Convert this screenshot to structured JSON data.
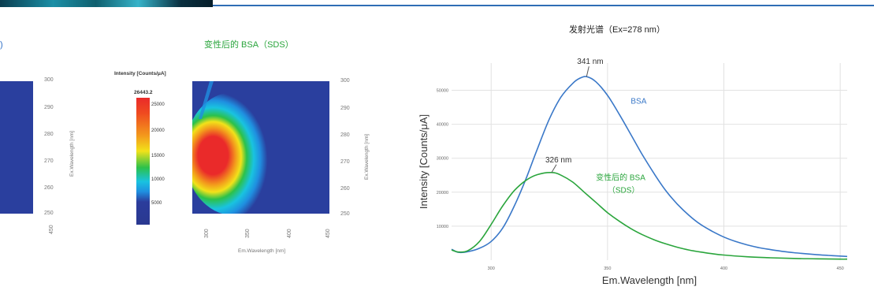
{
  "header": {
    "left_title_fragment": ")",
    "mid_title": "变性后的 BSA（SDS）",
    "right_title": "发射光谱（Ex=278 nm）"
  },
  "left_panel": {
    "y_ticks": [
      "300",
      "290",
      "280",
      "270",
      "260",
      "250"
    ],
    "x_ticks": [
      "450"
    ],
    "ylabel": "Ex.Wavelength [nm]"
  },
  "mid_panel": {
    "colorbar_title": "Intensity [Counts/μA]",
    "colorbar_max": "26443.2",
    "colorbar_ticks": [
      "25000",
      "20000",
      "15000",
      "10000",
      "5000"
    ],
    "y_ticks": [
      "300",
      "290",
      "280",
      "270",
      "260",
      "250"
    ],
    "x_ticks": [
      "300",
      "350",
      "400",
      "450"
    ],
    "xlabel": "Em.Wavelength [nm]",
    "ylabel": "Ex.Wavelength [nm]",
    "colors": {
      "low": "#263a9a",
      "mid_blue": "#1f8fe0",
      "cyan": "#19c3e0",
      "green": "#2cc14a",
      "yellow": "#f2e21a",
      "orange": "#f39a1c",
      "red": "#ea2a2a"
    }
  },
  "chart_data": {
    "type": "line",
    "title": "发射光谱（Ex=278 nm）",
    "xlabel": "Em.Wavelength [nm]",
    "ylabel": "Intensity [Counts/μA]",
    "xlim": [
      283,
      453
    ],
    "ylim": [
      0,
      58000
    ],
    "x_ticks": [
      "300",
      "350",
      "400",
      "450"
    ],
    "y_ticks": [
      "10000",
      "20000",
      "30000",
      "40000",
      "50000"
    ],
    "grid": true,
    "series": [
      {
        "name": "BSA",
        "color": "#3a78c8",
        "x": [
          283,
          286,
          290,
          295,
          300,
          305,
          310,
          315,
          320,
          325,
          330,
          335,
          338,
          341,
          345,
          350,
          355,
          360,
          365,
          370,
          375,
          380,
          385,
          390,
          395,
          400,
          405,
          410,
          415,
          420,
          425,
          430,
          435,
          440,
          445,
          450,
          453
        ],
        "y": [
          3200,
          2300,
          2500,
          3500,
          5500,
          9500,
          16000,
          24000,
          33000,
          41500,
          48000,
          52000,
          53500,
          54000,
          52500,
          48500,
          43000,
          37000,
          31000,
          25500,
          20500,
          16500,
          13200,
          10500,
          8500,
          6800,
          5500,
          4500,
          3700,
          3100,
          2600,
          2200,
          1900,
          1600,
          1400,
          1200,
          1100
        ]
      },
      {
        "name": "变性后的 BSA（SDS）",
        "color": "#2aa53c",
        "x": [
          283,
          286,
          290,
          295,
          300,
          305,
          310,
          315,
          320,
          326,
          330,
          335,
          340,
          345,
          350,
          355,
          360,
          365,
          370,
          375,
          380,
          385,
          390,
          395,
          400,
          410,
          420,
          430,
          440,
          450,
          453
        ],
        "y": [
          3000,
          2400,
          2800,
          5500,
          10500,
          16000,
          20500,
          23500,
          25200,
          25800,
          25000,
          23000,
          20000,
          17000,
          14000,
          11500,
          9300,
          7500,
          6000,
          4800,
          3800,
          3000,
          2400,
          1900,
          1500,
          1000,
          700,
          500,
          400,
          300,
          300
        ]
      }
    ],
    "annotations": [
      {
        "text": "341 nm",
        "x": 341,
        "y": 54000
      },
      {
        "text": "326 nm",
        "x": 326,
        "y": 25800
      }
    ],
    "series_labels": {
      "bsa": "BSA",
      "sds_line1": "变性后的 BSA",
      "sds_line2": "（SDS）"
    }
  }
}
